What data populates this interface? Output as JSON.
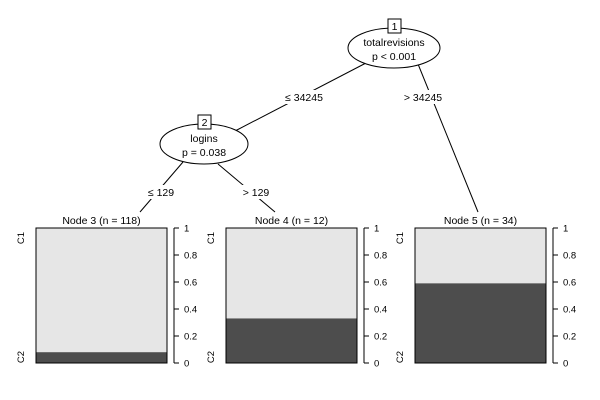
{
  "inner_nodes": [
    {
      "id": "1",
      "variable": "totalrevisions",
      "p_value": "p < 0.001"
    },
    {
      "id": "2",
      "variable": "logins",
      "p_value": "p = 0.038"
    }
  ],
  "edges": [
    {
      "from": "1",
      "to": "2",
      "label": "≤ 34245"
    },
    {
      "from": "1",
      "to": "5",
      "label": "> 34245"
    },
    {
      "from": "2",
      "to": "3",
      "label": "≤ 129"
    },
    {
      "from": "2",
      "to": "4",
      "label": "> 129"
    }
  ],
  "terminal_nodes": [
    {
      "id": "3",
      "title": "Node 3 (n = 118)",
      "c2_proportion": 0.08
    },
    {
      "id": "4",
      "title": "Node 4 (n = 12)",
      "c2_proportion": 0.33
    },
    {
      "id": "5",
      "title": "Node 5 (n = 34)",
      "c2_proportion": 0.59
    }
  ],
  "class_labels": {
    "top": "C1",
    "bottom": "C2"
  },
  "axis_ticks": [
    "0",
    "0.2",
    "0.4",
    "0.6",
    "0.8",
    "1"
  ],
  "tick_values": [
    0,
    0.2,
    0.4,
    0.6,
    0.8,
    1
  ],
  "colors": {
    "c1": "#e6e6e6",
    "c2": "#4d4d4d"
  }
}
